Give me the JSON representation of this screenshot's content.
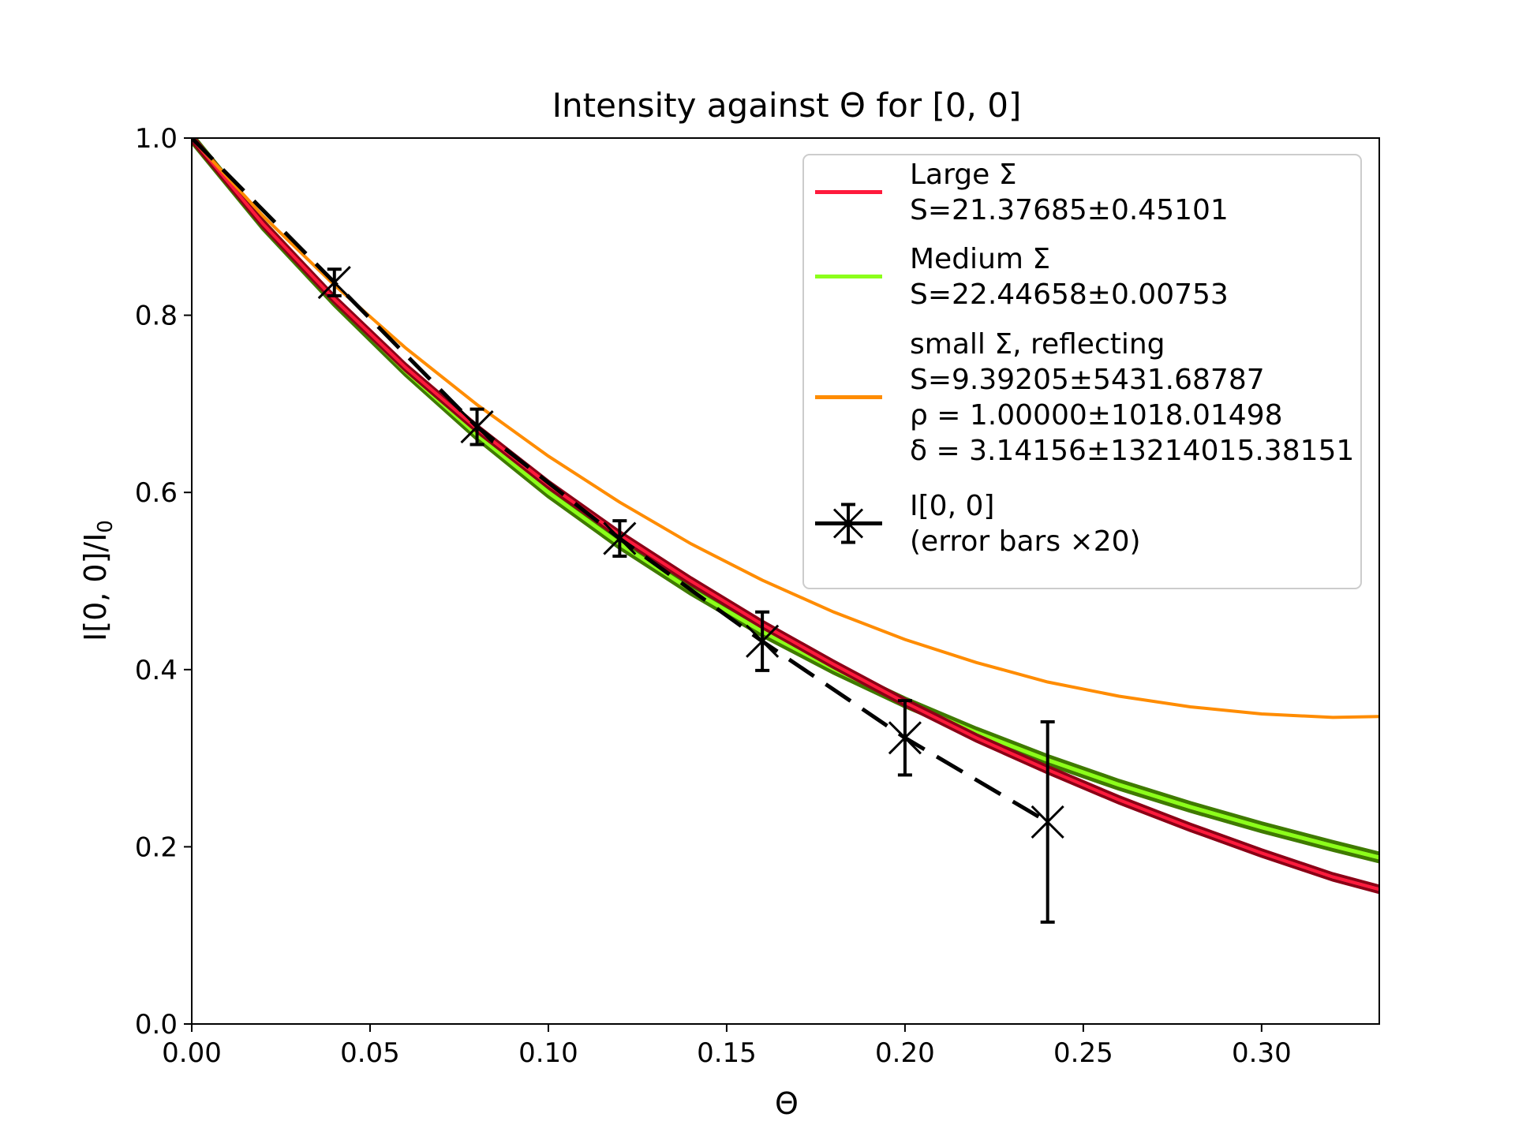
{
  "chart_data": {
    "type": "line",
    "title": "Intensity against Θ for [0, 0]",
    "xlabel": "Θ",
    "ylabel": "I[0, 0]/I",
    "ylabel_sub": "0",
    "xlim": [
      0.0,
      0.333
    ],
    "ylim": [
      0.0,
      1.0
    ],
    "xticks": [
      0.0,
      0.05,
      0.1,
      0.15,
      0.2,
      0.25,
      0.3
    ],
    "xtick_labels": [
      "0.00",
      "0.05",
      "0.10",
      "0.15",
      "0.20",
      "0.25",
      "0.30"
    ],
    "yticks": [
      0.0,
      0.2,
      0.4,
      0.6,
      0.8,
      1.0
    ],
    "ytick_labels": [
      "0.0",
      "0.2",
      "0.4",
      "0.6",
      "0.8",
      "1.0"
    ],
    "grid": false,
    "legend_position": "top-right",
    "colors": {
      "large": "#ff1a3c",
      "large_band": "#8b0016",
      "medium": "#8cff1a",
      "medium_band": "#3f7a00",
      "small": "#ff8c00",
      "data": "#000000"
    },
    "series": [
      {
        "key": "large",
        "legend": [
          "Large Σ",
          "S=21.37685±0.45101"
        ],
        "x": [
          0,
          0.02,
          0.04,
          0.06,
          0.08,
          0.1,
          0.12,
          0.14,
          0.16,
          0.18,
          0.2,
          0.22,
          0.24,
          0.26,
          0.28,
          0.3,
          0.32,
          0.333
        ],
        "y": [
          1.0,
          0.903,
          0.818,
          0.741,
          0.672,
          0.609,
          0.552,
          0.5,
          0.451,
          0.406,
          0.363,
          0.323,
          0.287,
          0.253,
          0.222,
          0.193,
          0.166,
          0.152
        ]
      },
      {
        "key": "medium",
        "legend": [
          "Medium Σ",
          "S=22.44658±0.00753"
        ],
        "x": [
          0,
          0.02,
          0.04,
          0.06,
          0.08,
          0.1,
          0.12,
          0.14,
          0.16,
          0.18,
          0.2,
          0.22,
          0.24,
          0.26,
          0.28,
          0.3,
          0.32,
          0.333
        ],
        "y": [
          1.0,
          0.902,
          0.816,
          0.737,
          0.665,
          0.6,
          0.542,
          0.49,
          0.443,
          0.401,
          0.363,
          0.329,
          0.298,
          0.27,
          0.245,
          0.222,
          0.201,
          0.188
        ]
      },
      {
        "key": "small",
        "legend": [
          "small Σ, reflecting",
          "S=9.39205±5431.68787",
          "ρ = 1.00000±1018.01498",
          "δ = 3.14156±13214015.38151"
        ],
        "x": [
          0,
          0.02,
          0.04,
          0.06,
          0.08,
          0.1,
          0.12,
          0.14,
          0.16,
          0.18,
          0.2,
          0.22,
          0.24,
          0.26,
          0.28,
          0.3,
          0.32,
          0.333
        ],
        "y": [
          1.0,
          0.912,
          0.834,
          0.763,
          0.699,
          0.641,
          0.589,
          0.542,
          0.501,
          0.465,
          0.434,
          0.408,
          0.386,
          0.37,
          0.358,
          0.35,
          0.346,
          0.347
        ]
      },
      {
        "key": "data",
        "legend": [
          "I[0, 0]",
          "(error bars ×20)"
        ],
        "x": [
          0.0,
          0.04,
          0.08,
          0.12,
          0.16,
          0.2,
          0.24
        ],
        "y": [
          1.0,
          0.837,
          0.674,
          0.548,
          0.432,
          0.323,
          0.228
        ],
        "yerr": [
          0.0,
          0.015,
          0.02,
          0.02,
          0.033,
          0.042,
          0.113
        ]
      }
    ]
  }
}
